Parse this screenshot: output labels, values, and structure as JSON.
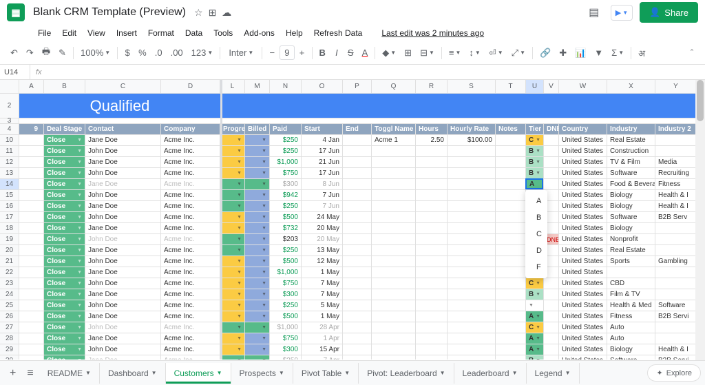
{
  "title": "Blank CRM Template (Preview)",
  "lastedit": "Last edit was 2 minutes ago",
  "share": "Share",
  "menus": [
    "File",
    "Edit",
    "View",
    "Insert",
    "Format",
    "Data",
    "Tools",
    "Add-ons",
    "Help",
    "Refresh Data"
  ],
  "cellref": "U14",
  "banner": "Qualified",
  "colwidths": {
    "rownum": 36,
    "deal": 60,
    "contact": 110,
    "company": 86,
    "prog": 36,
    "billed": 36,
    "paid": 46,
    "start": 60,
    "end": 42,
    "toggl": 64,
    "hours": 46,
    "rate": 70,
    "notes": 44,
    "tier": 26,
    "dnb": 22,
    "country": 70,
    "industry": 70,
    "industry2": 60
  },
  "colletters": [
    "A",
    "B",
    "C",
    "D",
    "L",
    "M",
    "N",
    "O",
    "P",
    "Q",
    "R",
    "S",
    "T",
    "U",
    "V",
    "W",
    "X",
    "Y"
  ],
  "headers": {
    "deal": "Deal Stage",
    "contact": "Contact",
    "company": "Company",
    "prog": "Progress",
    "billed": "Billed",
    "paid": "Paid",
    "start": "Start",
    "end": "End",
    "toggl": "Toggl Name",
    "hours": "Hours",
    "rate": "Hourly Rate",
    "notes": "Notes",
    "tier": "Tier",
    "dnb": "DNB",
    "country": "Country",
    "industry": "Industry",
    "industry2": "Industry 2"
  },
  "rows": [
    {
      "n": 10,
      "deal": "Close",
      "contact": "Jane Doe",
      "company": "Acme Inc.",
      "prog": "yellow",
      "billed": "blue",
      "paid": "$250",
      "paidc": "green",
      "start": "4 Jan",
      "toggl": "Acme 1",
      "hours": "2.50",
      "rate": "$100.00",
      "tier": "C",
      "country": "United States",
      "industry": "Real Estate"
    },
    {
      "n": 11,
      "deal": "Close",
      "contact": "John Doe",
      "company": "Acme Inc.",
      "prog": "yellow",
      "billed": "blue",
      "paid": "$250",
      "paidc": "green",
      "start": "17 Jun",
      "tier": "B",
      "country": "United States",
      "industry": "Construction"
    },
    {
      "n": 12,
      "deal": "Close",
      "contact": "Jane Doe",
      "company": "Acme Inc.",
      "prog": "yellow",
      "billed": "blue",
      "paid": "$1,000",
      "paidc": "green",
      "start": "21 Jun",
      "tier": "B",
      "country": "United States",
      "industry": "TV & Film",
      "industry2": "Media"
    },
    {
      "n": 13,
      "deal": "Close",
      "contact": "John Doe",
      "company": "Acme Inc.",
      "prog": "yellow",
      "billed": "blue",
      "paid": "$750",
      "paidc": "green",
      "start": "17 Jun",
      "tier": "B",
      "country": "United States",
      "industry": "Software",
      "industry2": "Recruiting"
    },
    {
      "n": 14,
      "deal": "Close",
      "contact": "Jane Doe",
      "cgrey": true,
      "company": "Acme Inc.",
      "cogrey": true,
      "prog": "green",
      "billed": "green",
      "paid": "$300",
      "paidc": "grey",
      "start": "8 Jun",
      "sgrey": true,
      "tier": "A",
      "active": true,
      "country": "United States",
      "industry": "Food & Beverage",
      "industry2": "Fitness"
    },
    {
      "n": 15,
      "deal": "Close",
      "contact": "John Doe",
      "company": "Acme Inc.",
      "prog": "green",
      "billed": "blue",
      "paid": "$942",
      "paidc": "green",
      "start": "7 Jun",
      "country": "United States",
      "industry": "Biology",
      "industry2": "Health & I"
    },
    {
      "n": 16,
      "deal": "Close",
      "contact": "Jane Doe",
      "company": "Acme Inc.",
      "prog": "green",
      "billed": "blue",
      "paid": "$250",
      "paidc": "green",
      "start": "7 Jun",
      "sgrey": true,
      "country": "United States",
      "industry": "Biology",
      "industry2": "Health & I"
    },
    {
      "n": 17,
      "deal": "Close",
      "contact": "John Doe",
      "company": "Acme Inc.",
      "prog": "yellow",
      "billed": "blue",
      "paid": "$500",
      "paidc": "green",
      "start": "24 May",
      "country": "United States",
      "industry": "Software",
      "industry2": "B2B Serv"
    },
    {
      "n": 18,
      "deal": "Close",
      "contact": "Jane Doe",
      "company": "Acme Inc.",
      "prog": "yellow",
      "billed": "blue",
      "paid": "$732",
      "paidc": "green",
      "start": "20 May",
      "country": "United States",
      "industry": "Biology"
    },
    {
      "n": 19,
      "deal": "Close",
      "contact": "John Doe",
      "cgrey": true,
      "company": "Acme Inc.",
      "cogrey": true,
      "prog": "green",
      "billed": "blue",
      "paid": "$203",
      "start": "20 May",
      "sgrey": true,
      "dnb": "DNB",
      "country": "United States",
      "industry": "Nonprofit"
    },
    {
      "n": 20,
      "deal": "Close",
      "contact": "Jane Doe",
      "company": "Acme Inc.",
      "prog": "green",
      "billed": "blue",
      "paid": "$250",
      "paidc": "green",
      "start": "13 May",
      "country": "United States",
      "industry": "Real Estate"
    },
    {
      "n": 21,
      "deal": "Close",
      "contact": "John Doe",
      "company": "Acme Inc.",
      "prog": "yellow",
      "billed": "blue",
      "paid": "$500",
      "paidc": "green",
      "start": "12 May",
      "tier": "A",
      "country": "United States",
      "industry": "Sports",
      "industry2": "Gambling"
    },
    {
      "n": 22,
      "deal": "Close",
      "contact": "Jane Doe",
      "company": "Acme Inc.",
      "prog": "yellow",
      "billed": "blue",
      "paid": "$1,000",
      "paidc": "green",
      "start": "1 May",
      "tier": "A",
      "country": "United States"
    },
    {
      "n": 23,
      "deal": "Close",
      "contact": "John Doe",
      "company": "Acme Inc.",
      "prog": "yellow",
      "billed": "blue",
      "paid": "$750",
      "paidc": "green",
      "start": "7 May",
      "tier": "C",
      "country": "United States",
      "industry": "CBD"
    },
    {
      "n": 24,
      "deal": "Close",
      "contact": "Jane Doe",
      "company": "Acme Inc.",
      "prog": "yellow",
      "billed": "blue",
      "paid": "$300",
      "paidc": "green",
      "start": "7 May",
      "tier": "B",
      "country": "United States",
      "industry": "Film & TV"
    },
    {
      "n": 25,
      "deal": "Close",
      "contact": "John Doe",
      "company": "Acme Inc.",
      "prog": "yellow",
      "billed": "blue",
      "paid": "$250",
      "paidc": "green",
      "start": "5 May",
      "country": "United States",
      "industry": "Health & Med",
      "industry2": "Software"
    },
    {
      "n": 26,
      "deal": "Close",
      "contact": "Jane Doe",
      "company": "Acme Inc.",
      "prog": "yellow",
      "billed": "blue",
      "paid": "$500",
      "paidc": "green",
      "start": "1 May",
      "tier": "A",
      "country": "United States",
      "industry": "Fitness",
      "industry2": "B2B Servi"
    },
    {
      "n": 27,
      "deal": "Close",
      "contact": "John Doe",
      "cgrey": true,
      "company": "Acme Inc.",
      "cogrey": true,
      "prog": "green",
      "billed": "green",
      "paid": "$1,000",
      "paidc": "grey",
      "start": "28 Apr",
      "sgrey": true,
      "tier": "C",
      "country": "United States",
      "industry": "Auto"
    },
    {
      "n": 28,
      "deal": "Close",
      "contact": "Jane Doe",
      "company": "Acme Inc.",
      "prog": "yellow",
      "billed": "blue",
      "paid": "$750",
      "paidc": "green",
      "start": "1 Apr",
      "sgrey": true,
      "tier": "A",
      "country": "United States",
      "industry": "Auto"
    },
    {
      "n": 29,
      "deal": "Close",
      "contact": "John Doe",
      "company": "Acme Inc.",
      "prog": "yellow",
      "billed": "blue",
      "paid": "$300",
      "paidc": "green",
      "start": "15 Apr",
      "tier": "A",
      "country": "United States",
      "industry": "Biology",
      "industry2": "Health & I"
    },
    {
      "n": 30,
      "deal": "Close",
      "contact": "Jane Doe",
      "cgrey": true,
      "company": "Acme Inc.",
      "cogrey": true,
      "prog": "green",
      "billed": "green",
      "paid": "$250",
      "paidc": "grey",
      "start": "7 Apr",
      "sgrey": true,
      "tier": "B",
      "country": "United States",
      "industry": "Software",
      "industry2": "B2B Servi"
    }
  ],
  "dropdown_opts": [
    "A",
    "B",
    "C",
    "D",
    "F"
  ],
  "tabs": [
    "README",
    "Dashboard",
    "Customers",
    "Prospects",
    "Pivot Table",
    "Pivot: Leaderboard",
    "Leaderboard",
    "Legend"
  ],
  "active_tab": 2,
  "explore": "Explore",
  "nine": "9"
}
